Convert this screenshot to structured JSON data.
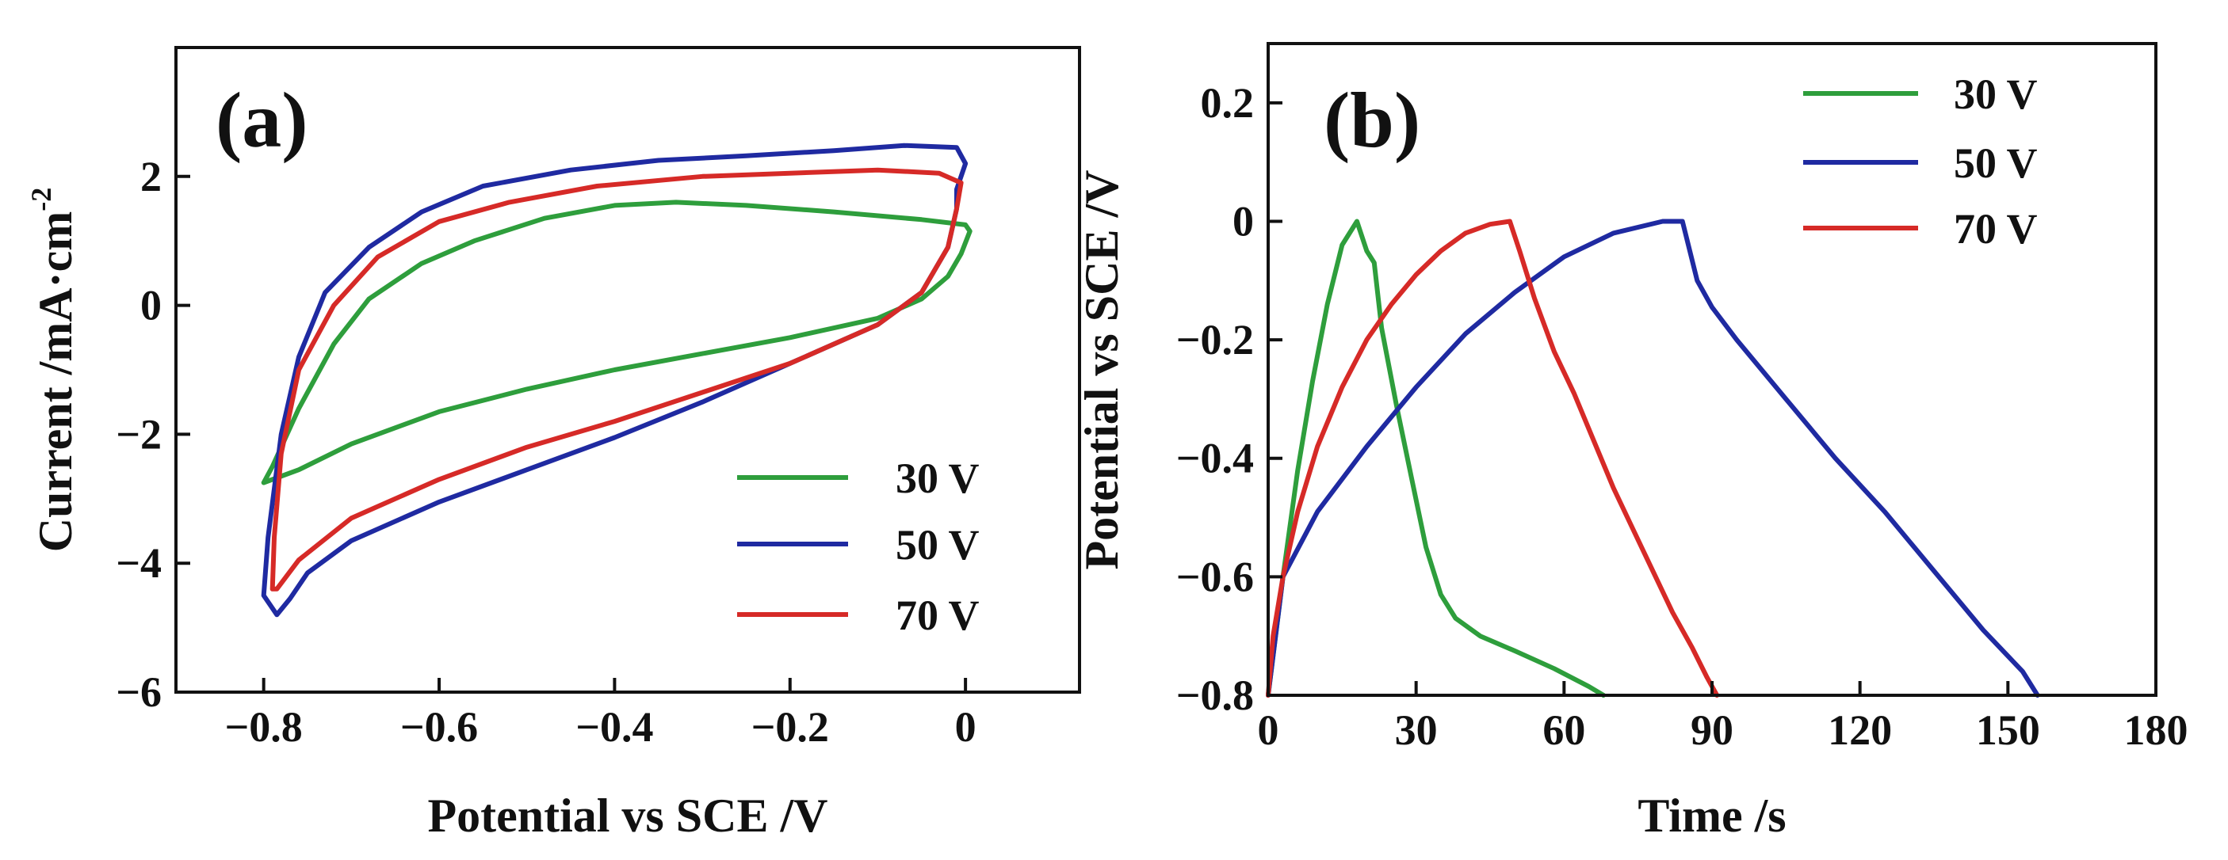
{
  "chart_data": [
    {
      "panel_label": "(a)",
      "type": "line",
      "xlabel": "Potential vs SCE /V",
      "ylabel_main": "Current /mA·cm",
      "ylabel_sup": "-2",
      "xlim": [
        -0.9,
        0.13
      ],
      "ylim": [
        -6,
        4
      ],
      "xticks": [
        -0.8,
        -0.6,
        -0.4,
        -0.2,
        0
      ],
      "xtick_labels": [
        "−0.8",
        "−0.6",
        "−0.4",
        "−0.2",
        "0"
      ],
      "yticks": [
        -6,
        -4,
        -2,
        0,
        2
      ],
      "ytick_labels": [
        "−6",
        "−4",
        "−2",
        "0",
        "2"
      ],
      "legend_position": "lower-right",
      "series": [
        {
          "name": "30 V",
          "color": "#2e9e3c",
          "points": [
            [
              -0.8,
              -2.75
            ],
            [
              -0.79,
              -2.5
            ],
            [
              -0.76,
              -1.6
            ],
            [
              -0.72,
              -0.6
            ],
            [
              -0.68,
              0.1
            ],
            [
              -0.62,
              0.65
            ],
            [
              -0.56,
              1.0
            ],
            [
              -0.48,
              1.35
            ],
            [
              -0.4,
              1.55
            ],
            [
              -0.33,
              1.6
            ],
            [
              -0.25,
              1.55
            ],
            [
              -0.15,
              1.45
            ],
            [
              -0.05,
              1.33
            ],
            [
              0.0,
              1.25
            ],
            [
              0.005,
              1.15
            ],
            [
              -0.005,
              0.8
            ],
            [
              -0.02,
              0.45
            ],
            [
              -0.05,
              0.1
            ],
            [
              -0.1,
              -0.2
            ],
            [
              -0.2,
              -0.5
            ],
            [
              -0.3,
              -0.75
            ],
            [
              -0.4,
              -1.0
            ],
            [
              -0.5,
              -1.3
            ],
            [
              -0.6,
              -1.65
            ],
            [
              -0.7,
              -2.15
            ],
            [
              -0.76,
              -2.55
            ],
            [
              -0.8,
              -2.75
            ]
          ]
        },
        {
          "name": "50 V",
          "color": "#1f2aa1",
          "points": [
            [
              -0.8,
              -4.5
            ],
            [
              -0.795,
              -3.6
            ],
            [
              -0.78,
              -2.0
            ],
            [
              -0.76,
              -0.8
            ],
            [
              -0.73,
              0.2
            ],
            [
              -0.68,
              0.9
            ],
            [
              -0.62,
              1.45
            ],
            [
              -0.55,
              1.85
            ],
            [
              -0.45,
              2.1
            ],
            [
              -0.35,
              2.25
            ],
            [
              -0.25,
              2.32
            ],
            [
              -0.15,
              2.4
            ],
            [
              -0.07,
              2.48
            ],
            [
              -0.01,
              2.45
            ],
            [
              0.0,
              2.2
            ],
            [
              -0.01,
              1.8
            ],
            [
              -0.01,
              1.5
            ],
            [
              -0.02,
              0.9
            ],
            [
              -0.05,
              0.2
            ],
            [
              -0.1,
              -0.3
            ],
            [
              -0.2,
              -0.9
            ],
            [
              -0.3,
              -1.5
            ],
            [
              -0.4,
              -2.05
            ],
            [
              -0.5,
              -2.55
            ],
            [
              -0.6,
              -3.05
            ],
            [
              -0.7,
              -3.65
            ],
            [
              -0.75,
              -4.15
            ],
            [
              -0.77,
              -4.55
            ],
            [
              -0.785,
              -4.8
            ],
            [
              -0.8,
              -4.5
            ]
          ]
        },
        {
          "name": "70 V",
          "color": "#d62a27",
          "points": [
            [
              -0.79,
              -4.4
            ],
            [
              -0.788,
              -3.6
            ],
            [
              -0.78,
              -2.3
            ],
            [
              -0.76,
              -1.0
            ],
            [
              -0.72,
              0.0
            ],
            [
              -0.67,
              0.75
            ],
            [
              -0.6,
              1.3
            ],
            [
              -0.52,
              1.6
            ],
            [
              -0.42,
              1.85
            ],
            [
              -0.3,
              2.0
            ],
            [
              -0.2,
              2.05
            ],
            [
              -0.1,
              2.1
            ],
            [
              -0.03,
              2.05
            ],
            [
              -0.005,
              1.9
            ],
            [
              -0.01,
              1.5
            ],
            [
              -0.02,
              0.9
            ],
            [
              -0.05,
              0.2
            ],
            [
              -0.1,
              -0.3
            ],
            [
              -0.2,
              -0.9
            ],
            [
              -0.3,
              -1.35
            ],
            [
              -0.4,
              -1.8
            ],
            [
              -0.5,
              -2.2
            ],
            [
              -0.6,
              -2.7
            ],
            [
              -0.7,
              -3.3
            ],
            [
              -0.76,
              -3.95
            ],
            [
              -0.785,
              -4.4
            ],
            [
              -0.79,
              -4.4
            ]
          ]
        }
      ]
    },
    {
      "panel_label": "(b)",
      "type": "line",
      "xlabel": "Time /s",
      "ylabel": "Potential vs SCE /V",
      "xlim": [
        0,
        180
      ],
      "ylim": [
        -0.8,
        0.3
      ],
      "xticks": [
        0,
        30,
        60,
        90,
        120,
        150,
        180
      ],
      "xtick_labels": [
        "0",
        "30",
        "60",
        "90",
        "120",
        "150",
        "180"
      ],
      "yticks": [
        -0.8,
        -0.6,
        -0.4,
        -0.2,
        0,
        0.2
      ],
      "ytick_labels": [
        "−0.8",
        "−0.6",
        "−0.4",
        "−0.2",
        "0",
        "0.2"
      ],
      "legend_position": "top-right",
      "series": [
        {
          "name": "30 V",
          "color": "#2e9e3c",
          "points": [
            [
              0,
              -0.8
            ],
            [
              3,
              -0.6
            ],
            [
              6,
              -0.42
            ],
            [
              9,
              -0.27
            ],
            [
              12,
              -0.14
            ],
            [
              15,
              -0.04
            ],
            [
              18,
              0.0
            ],
            [
              20,
              -0.05
            ],
            [
              21.5,
              -0.07
            ],
            [
              23,
              -0.18
            ],
            [
              26,
              -0.31
            ],
            [
              29,
              -0.43
            ],
            [
              32,
              -0.55
            ],
            [
              35,
              -0.63
            ],
            [
              38,
              -0.67
            ],
            [
              43,
              -0.7
            ],
            [
              50,
              -0.725
            ],
            [
              58,
              -0.755
            ],
            [
              65,
              -0.785
            ],
            [
              68,
              -0.8
            ]
          ]
        },
        {
          "name": "50 V",
          "color": "#1f2aa1",
          "points": [
            [
              0,
              -0.8
            ],
            [
              3,
              -0.6
            ],
            [
              10,
              -0.49
            ],
            [
              20,
              -0.38
            ],
            [
              30,
              -0.28
            ],
            [
              40,
              -0.19
            ],
            [
              50,
              -0.12
            ],
            [
              60,
              -0.06
            ],
            [
              70,
              -0.02
            ],
            [
              80,
              0.0
            ],
            [
              84,
              0.0
            ],
            [
              87,
              -0.1
            ],
            [
              90,
              -0.145
            ],
            [
              95,
              -0.2
            ],
            [
              105,
              -0.3
            ],
            [
              115,
              -0.4
            ],
            [
              125,
              -0.49
            ],
            [
              135,
              -0.59
            ],
            [
              145,
              -0.69
            ],
            [
              153,
              -0.76
            ],
            [
              156,
              -0.8
            ]
          ]
        },
        {
          "name": "70 V",
          "color": "#d62a27",
          "points": [
            [
              0,
              -0.8
            ],
            [
              1,
              -0.7
            ],
            [
              3,
              -0.6
            ],
            [
              6,
              -0.49
            ],
            [
              10,
              -0.38
            ],
            [
              15,
              -0.28
            ],
            [
              20,
              -0.2
            ],
            [
              25,
              -0.14
            ],
            [
              30,
              -0.09
            ],
            [
              35,
              -0.05
            ],
            [
              40,
              -0.02
            ],
            [
              45,
              -0.005
            ],
            [
              49,
              0.0
            ],
            [
              51,
              -0.05
            ],
            [
              54,
              -0.13
            ],
            [
              58,
              -0.22
            ],
            [
              62,
              -0.29
            ],
            [
              66,
              -0.37
            ],
            [
              70,
              -0.45
            ],
            [
              74,
              -0.52
            ],
            [
              78,
              -0.59
            ],
            [
              82,
              -0.66
            ],
            [
              86,
              -0.72
            ],
            [
              89,
              -0.77
            ],
            [
              91,
              -0.8
            ]
          ]
        }
      ]
    }
  ]
}
